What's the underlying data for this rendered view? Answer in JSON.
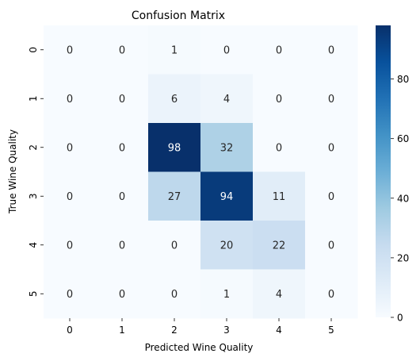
{
  "chart_data": {
    "type": "heatmap",
    "title": "Confusion Matrix",
    "xlabel": "Predicted Wine Quality",
    "ylabel": "True Wine Quality",
    "x_categories": [
      "0",
      "1",
      "2",
      "3",
      "4",
      "5"
    ],
    "y_categories": [
      "0",
      "1",
      "2",
      "3",
      "4",
      "5"
    ],
    "values": [
      [
        0,
        0,
        1,
        0,
        0,
        0
      ],
      [
        0,
        0,
        6,
        4,
        0,
        0
      ],
      [
        0,
        0,
        98,
        32,
        0,
        0
      ],
      [
        0,
        0,
        27,
        94,
        11,
        0
      ],
      [
        0,
        0,
        0,
        20,
        22,
        0
      ],
      [
        0,
        0,
        0,
        1,
        4,
        0
      ]
    ],
    "colormap": "Blues",
    "color_range": [
      0,
      98
    ],
    "colorbar_ticks": [
      "0",
      "20",
      "40",
      "60",
      "80"
    ],
    "colorbar_tick_values": [
      0,
      20,
      40,
      60,
      80
    ],
    "annotations": true,
    "grid": false,
    "colorbar_placement": "right"
  }
}
